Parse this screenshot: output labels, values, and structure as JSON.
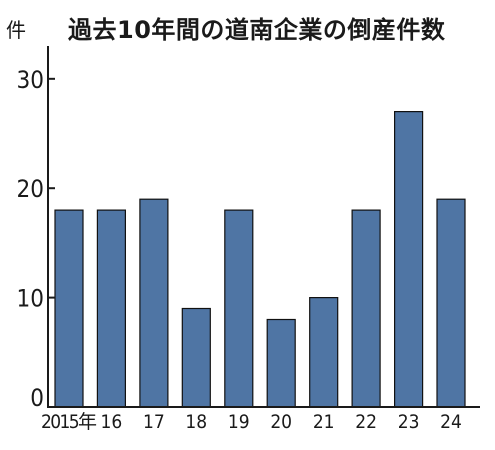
{
  "title": "過去10年間の道南企業の倒産件数",
  "unit": "件",
  "chart_data": {
    "type": "bar",
    "title": "過去10年間の道南企業の倒産件数",
    "ylabel": "件",
    "categories": [
      "2015年",
      "16",
      "17",
      "18",
      "19",
      "20",
      "21",
      "22",
      "23",
      "24"
    ],
    "values": [
      18,
      18,
      19,
      9,
      18,
      8,
      10,
      18,
      27,
      19
    ],
    "ylim": [
      0,
      33
    ],
    "yticks": [
      0,
      10,
      20,
      30
    ],
    "bar_color": "#4f75a4",
    "grid": false,
    "legend": "none"
  }
}
